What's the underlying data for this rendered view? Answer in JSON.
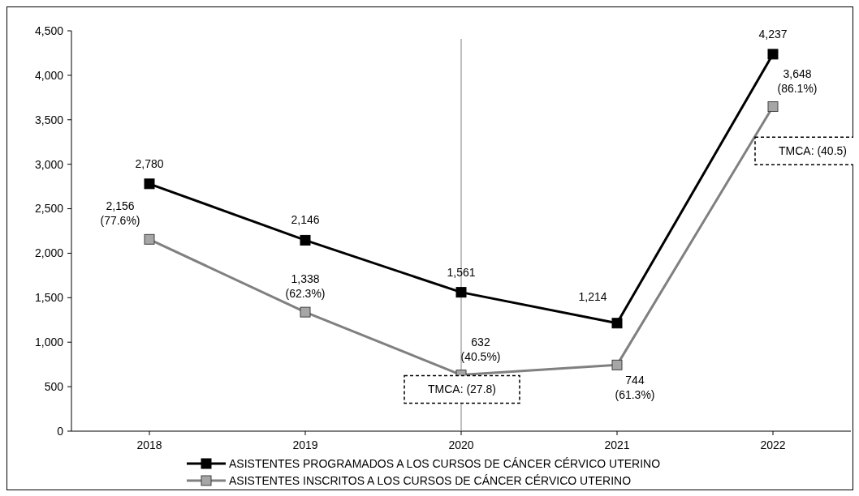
{
  "chart_data": {
    "type": "line",
    "categories": [
      "2018",
      "2019",
      "2020",
      "2021",
      "2022"
    ],
    "series": [
      {
        "name": "ASISTENTES PROGRAMADOS A LOS CURSOS DE CÁNCER CÉRVICO UTERINO",
        "color": "#000000",
        "values": [
          2780,
          2146,
          1561,
          1214,
          4237
        ],
        "value_labels": [
          "2,780",
          "2,146",
          "1,561",
          "1,214",
          "4,237"
        ]
      },
      {
        "name": "ASISTENTES INSCRITOS A LOS CURSOS DE CÁNCER CÉRVICO UTERINO",
        "color": "#808080",
        "values": [
          2156,
          1338,
          632,
          744,
          3648
        ],
        "value_labels": [
          "2,156 (77.6%)",
          "1,338 (62.3%)",
          "632 (40.5%)",
          "744 (61.3%)",
          "3,648 (86.1%)"
        ]
      }
    ],
    "ylim": [
      0,
      4500
    ],
    "yticks": [
      0,
      500,
      {
        "value": 1000,
        "label": "1,000"
      },
      {
        "value": 1500,
        "label": "1,500"
      },
      {
        "value": 2000,
        "label": "2,000"
      },
      {
        "value": 2500,
        "label": "2,500"
      },
      {
        "value": 3000,
        "label": "3,000"
      },
      {
        "value": 3500,
        "label": "3,500"
      },
      {
        "value": 4000,
        "label": "4,000"
      },
      {
        "value": 4500,
        "label": "4,500"
      }
    ],
    "ref_lines": [
      {
        "axis": "x",
        "value": "2020",
        "color": "#808080"
      }
    ],
    "annotations": [
      "TMCA: (27.8)",
      "TMCA: (40.5)"
    ],
    "marker": "square",
    "line_style": "solid",
    "grid": false,
    "legend": "bottom"
  }
}
